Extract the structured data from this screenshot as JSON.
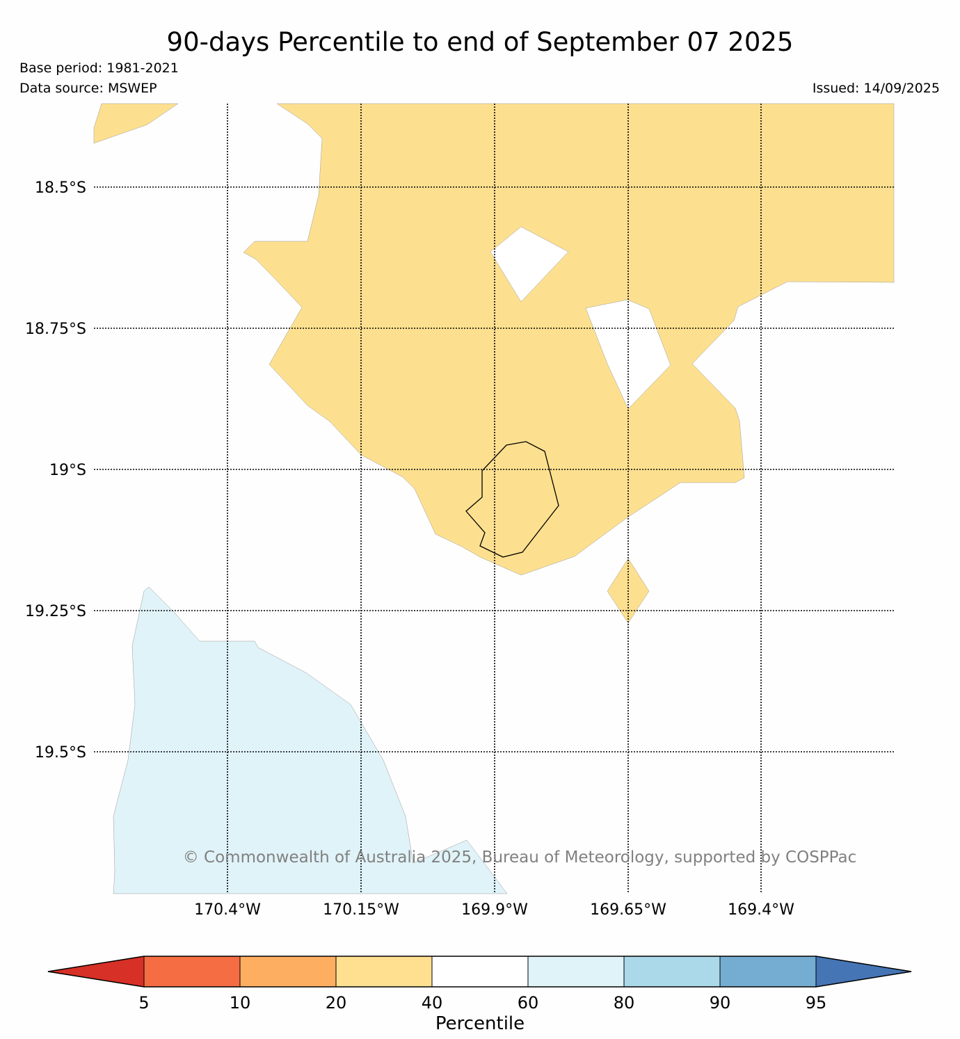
{
  "header": {
    "title": "90-days Percentile to end of September 07 2025",
    "base_period": "Base period: 1981-2021",
    "data_source": "Data source: MSWEP",
    "issued": "Issued: 14/09/2025"
  },
  "map": {
    "latitude_labels": [
      "18.5°S",
      "18.75°S",
      "19°S",
      "19.25°S",
      "19.5°S"
    ],
    "longitude_labels": [
      "170.4°W",
      "170.15°W",
      "169.9°W",
      "169.65°W",
      "169.4°W"
    ],
    "copyright": "© Commonwealth of Australia 2025, Bureau of Meteorology, supported by COSPPac",
    "region_classes": {
      "20-40": "#fde08f",
      "40-60": "#ffffff",
      "60-80": "#e0f3f8"
    }
  },
  "colorbar": {
    "label": "Percentile",
    "ticks": [
      "5",
      "10",
      "20",
      "40",
      "60",
      "80",
      "90",
      "95"
    ],
    "colors": {
      "below_5": "#d73027",
      "5-10": "#f46d43",
      "10-20": "#fdae61",
      "20-40": "#fee090",
      "40-60": "#ffffff",
      "60-80": "#e0f3f8",
      "80-90": "#abd9e9",
      "90-95": "#74add1",
      "above_95": "#4575b4"
    }
  }
}
